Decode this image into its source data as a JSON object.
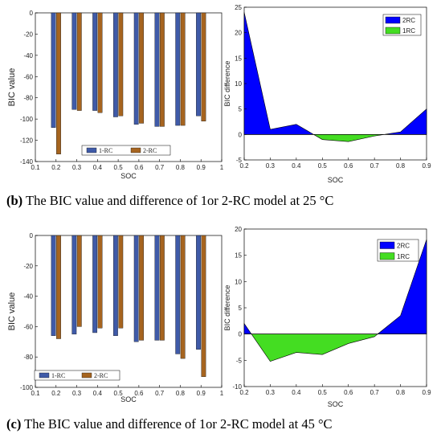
{
  "captions": {
    "b_label": "(b)",
    "b_text": "The BIC value and difference of 1or 2-RC model at 25 °C",
    "c_label": "(c)",
    "c_text": "The BIC value and difference of 1or 2-RC model at 45 °C"
  },
  "colors": {
    "rc1_bar": "#3f5aa8",
    "rc2_bar": "#a6641f",
    "area_2rc": "#0000ff",
    "area_1rc": "#44dd22"
  },
  "chart_data": [
    {
      "type": "bar",
      "title": "",
      "xlabel": "SOC",
      "ylabel": "BIC value",
      "categories": [
        "0.2",
        "0.3",
        "0.4",
        "0.5",
        "0.6",
        "0.7",
        "0.8",
        "0.9"
      ],
      "x": [
        0.2,
        0.3,
        0.4,
        0.5,
        0.6,
        0.7,
        0.8,
        0.9
      ],
      "xlim": [
        0.1,
        1
      ],
      "ylim": [
        -140,
        0
      ],
      "xticks": [
        "0.1",
        "0.2",
        "0.3",
        "0.4",
        "0.5",
        "0.6",
        "0.7",
        "0.8",
        "0.9",
        "1"
      ],
      "yticks": [
        "0",
        "-20",
        "-40",
        "-60",
        "-80",
        "-100",
        "-120",
        "-140"
      ],
      "legend_position": "bottom-center",
      "series": [
        {
          "name": "1-RC",
          "values": [
            -108,
            -91,
            -92,
            -98,
            -105,
            -107,
            -106,
            -97
          ]
        },
        {
          "name": "2-RC",
          "values": [
            -133,
            -92,
            -94,
            -97,
            -104,
            -107,
            -106,
            -102
          ]
        }
      ]
    },
    {
      "type": "area",
      "title": "",
      "xlabel": "SOC",
      "ylabel": "BIC difference",
      "x": [
        0.2,
        0.3,
        0.4,
        0.5,
        0.6,
        0.7,
        0.8,
        0.9
      ],
      "values": [
        24,
        1,
        2,
        -1,
        -1.4,
        -0.3,
        0.5,
        5
      ],
      "xlim": [
        0.2,
        0.9
      ],
      "ylim": [
        -5,
        25
      ],
      "xticks": [
        "0.2",
        "0.3",
        "0.4",
        "0.5",
        "0.6",
        "0.7",
        "0.8",
        "0.9"
      ],
      "yticks": [
        "25",
        "20",
        "15",
        "10",
        "5",
        "0",
        "-5"
      ],
      "legend_position": "top-right",
      "legend": [
        "2RC",
        "1RC"
      ]
    },
    {
      "type": "bar",
      "title": "",
      "xlabel": "SOC",
      "ylabel": "BIC value",
      "categories": [
        "0.2",
        "0.3",
        "0.4",
        "0.5",
        "0.6",
        "0.7",
        "0.8",
        "0.9"
      ],
      "x": [
        0.2,
        0.3,
        0.4,
        0.5,
        0.6,
        0.7,
        0.8,
        0.9
      ],
      "xlim": [
        0.1,
        1
      ],
      "ylim": [
        -100,
        0
      ],
      "xticks": [
        "0.1",
        "0.2",
        "0.3",
        "0.4",
        "0.5",
        "0.6",
        "0.7",
        "0.8",
        "0.9",
        "1"
      ],
      "yticks": [
        "0",
        "-20",
        "-40",
        "-60",
        "-80",
        "-100"
      ],
      "legend_position": "bottom-center",
      "series": [
        {
          "name": "1-RC",
          "values": [
            -66,
            -65,
            -64,
            -66,
            -70,
            -69,
            -78,
            -75
          ]
        },
        {
          "name": "2-RC",
          "values": [
            -68,
            -60,
            -61,
            -61,
            -69,
            -69,
            -81,
            -93
          ]
        }
      ]
    },
    {
      "type": "area",
      "title": "",
      "xlabel": "SOC",
      "ylabel": "BIC difference",
      "x": [
        0.2,
        0.3,
        0.4,
        0.5,
        0.6,
        0.7,
        0.8,
        0.9
      ],
      "values": [
        2,
        -5.2,
        -3.5,
        -3.9,
        -1.8,
        -0.5,
        3.5,
        18
      ],
      "xlim": [
        0.2,
        0.9
      ],
      "ylim": [
        -10,
        20
      ],
      "xticks": [
        "0.2",
        "0.3",
        "0.4",
        "0.5",
        "0.6",
        "0.7",
        "0.8",
        "0.9"
      ],
      "yticks": [
        "20",
        "15",
        "10",
        "5",
        "0",
        "-5",
        "-10"
      ],
      "legend_position": "top-right",
      "legend": [
        "2RC",
        "1RC"
      ]
    }
  ]
}
